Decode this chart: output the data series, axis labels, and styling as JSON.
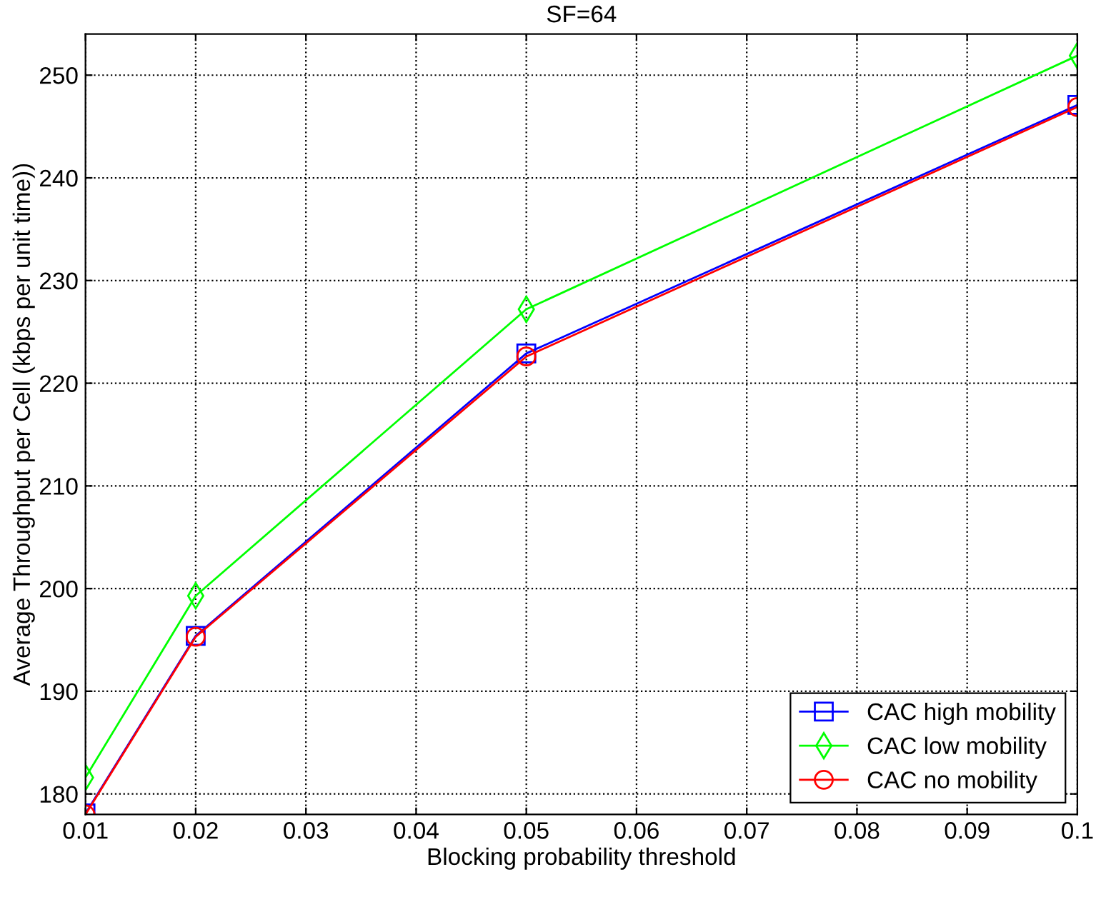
{
  "chart_data": {
    "type": "line",
    "title": "SF=64",
    "xlabel": "Blocking probability threshold",
    "ylabel": "Average Throughput per Cell (kbps per unit time))",
    "x": [
      0.01,
      0.02,
      0.05,
      0.1
    ],
    "series": [
      {
        "name": "CAC high mobility",
        "color": "#0000ff",
        "marker": "square",
        "values": [
          178.1,
          195.4,
          222.9,
          247.1
        ]
      },
      {
        "name": "CAC low mobility",
        "color": "#00ff00",
        "marker": "diamond",
        "values": [
          181.6,
          199.3,
          227.2,
          251.9
        ]
      },
      {
        "name": "CAC no mobility",
        "color": "#ff0000",
        "marker": "circle",
        "values": [
          178.0,
          195.3,
          222.6,
          246.9
        ]
      }
    ],
    "xlim": [
      0.01,
      0.1
    ],
    "xticks": [
      0.01,
      0.02,
      0.03,
      0.04,
      0.05,
      0.06,
      0.07,
      0.08,
      0.09,
      0.1
    ],
    "ylim": [
      178,
      254
    ],
    "yticks": [
      180,
      190,
      200,
      210,
      220,
      230,
      240,
      250
    ],
    "grid": true,
    "legend": "bottom right",
    "line_style": "solid"
  }
}
